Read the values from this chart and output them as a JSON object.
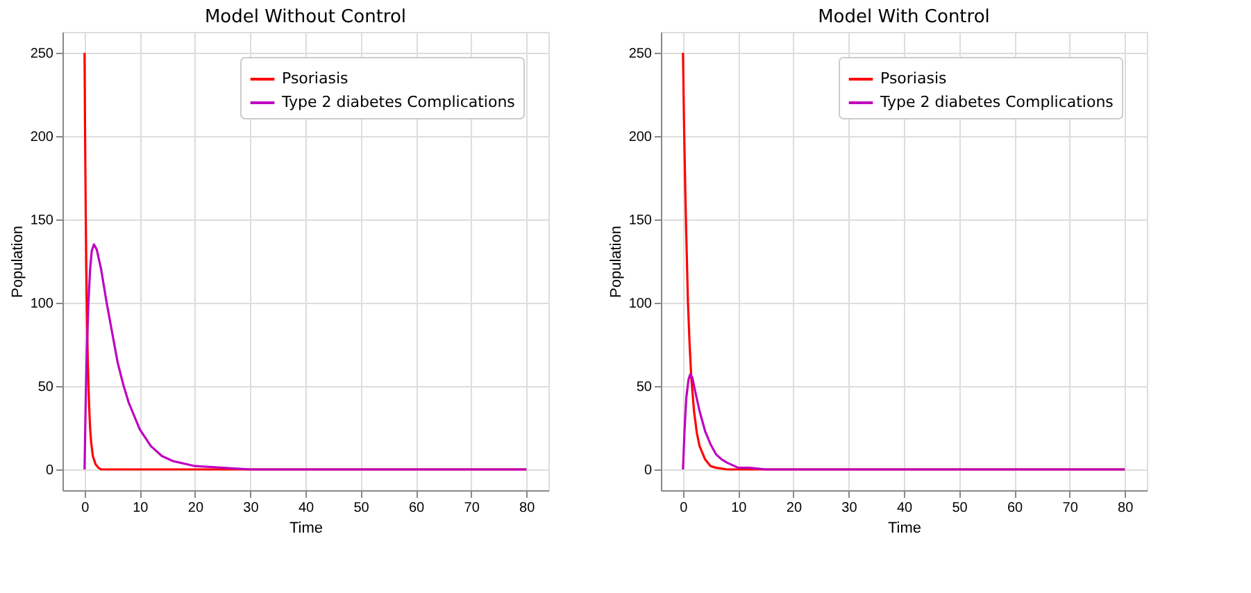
{
  "chart_data": [
    {
      "type": "line",
      "title": "Model Without Control",
      "xlabel": "Time",
      "ylabel": "Population",
      "xlim": [
        -4,
        84
      ],
      "ylim": [
        -12.5,
        262.5
      ],
      "xticks": [
        0,
        10,
        20,
        30,
        40,
        50,
        60,
        70,
        80
      ],
      "yticks": [
        0,
        50,
        100,
        150,
        200,
        250
      ],
      "grid": true,
      "legend": "top right",
      "line_style": "solid",
      "series": [
        {
          "name": "Psoriasis",
          "color": "#ff0000",
          "x": [
            0,
            0.1,
            0.2,
            0.3,
            0.4,
            0.5,
            0.6,
            0.8,
            1.0,
            1.2,
            1.5,
            2,
            2.5,
            3,
            4,
            5,
            10,
            20,
            40,
            80
          ],
          "values": [
            250,
            198,
            158,
            125,
            100,
            79,
            63,
            40,
            25,
            16,
            8,
            3,
            1,
            0,
            0,
            0,
            0,
            0,
            0,
            0
          ]
        },
        {
          "name": "Type 2 diabetes Complications",
          "color": "#bf00bf",
          "x": [
            0,
            0.2,
            0.4,
            0.7,
            1.0,
            1.3,
            1.7,
            2.2,
            3,
            4,
            5,
            6,
            7,
            8,
            10,
            12,
            14,
            16,
            20,
            25,
            30,
            80
          ],
          "values": [
            0,
            40,
            70,
            100,
            120,
            131,
            135,
            132,
            120,
            100,
            82,
            64,
            51,
            40,
            24,
            14,
            8,
            5,
            2,
            1,
            0,
            0
          ]
        }
      ]
    },
    {
      "type": "line",
      "title": "Model With Control",
      "xlabel": "Time",
      "ylabel": "Population",
      "xlim": [
        -4,
        84
      ],
      "ylim": [
        -12.5,
        262.5
      ],
      "xticks": [
        0,
        10,
        20,
        30,
        40,
        50,
        60,
        70,
        80
      ],
      "yticks": [
        0,
        50,
        100,
        150,
        200,
        250
      ],
      "grid": true,
      "legend": "top right",
      "line_style": "solid",
      "series": [
        {
          "name": "Psoriasis",
          "color": "#ff0000",
          "x": [
            0,
            0.2,
            0.4,
            0.6,
            0.9,
            1.2,
            1.5,
            2,
            2.5,
            3,
            4,
            5,
            6,
            8,
            80
          ],
          "values": [
            250,
            205,
            170,
            140,
            100,
            75,
            55,
            35,
            22,
            14,
            6,
            2,
            1,
            0,
            0
          ]
        },
        {
          "name": "Type 2 diabetes Complications",
          "color": "#bf00bf",
          "x": [
            0,
            0.3,
            0.6,
            1.0,
            1.3,
            1.7,
            2.2,
            3,
            4,
            5,
            6,
            7,
            8,
            10,
            12,
            15,
            80
          ],
          "values": [
            0,
            25,
            43,
            54,
            57,
            55,
            47,
            35,
            23,
            15,
            9,
            6,
            4,
            1,
            1,
            0,
            0
          ]
        }
      ]
    }
  ]
}
